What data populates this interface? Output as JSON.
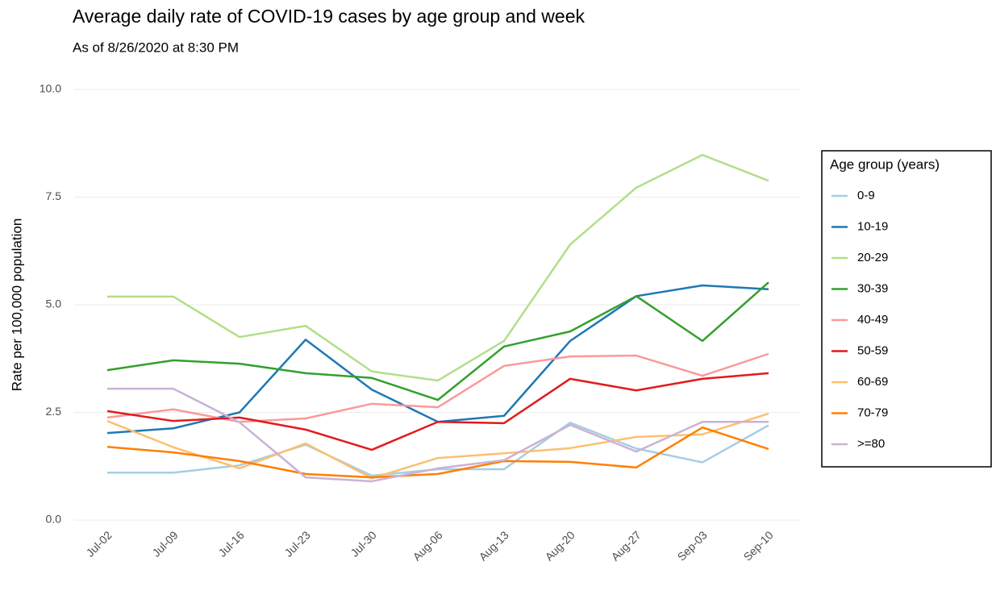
{
  "chart_data": {
    "type": "line",
    "title": "Average daily rate of COVID-19 cases by age group and week",
    "subtitle": "As of 8/26/2020 at 8:30 PM",
    "y_label": "Rate per 100,000 population",
    "legend_title": "Age group (years)",
    "legend": "right",
    "grid": true,
    "categories": [
      "Jul-02",
      "Jul-09",
      "Jul-16",
      "Jul-23",
      "Jul-30",
      "Aug-06",
      "Aug-13",
      "Aug-20",
      "Aug-27",
      "Sep-03",
      "Sep-10"
    ],
    "ylim": [
      0,
      10
    ],
    "yticks": [
      {
        "value": 0,
        "label": "0.0"
      },
      {
        "value": 2.5,
        "label": "2.5"
      },
      {
        "value": 5,
        "label": "5.0"
      },
      {
        "value": 7.5,
        "label": "7.5"
      },
      {
        "value": 10,
        "label": "10.0"
      }
    ],
    "series": [
      {
        "name": "0-9",
        "color": "#a6cee3",
        "values": [
          1.1,
          1.1,
          1.27,
          1.75,
          1.03,
          1.18,
          1.18,
          2.26,
          1.66,
          1.34,
          2.2
        ]
      },
      {
        "name": "10-19",
        "color": "#1f78b4",
        "values": [
          2.02,
          2.13,
          2.5,
          4.19,
          3.03,
          2.28,
          2.42,
          4.16,
          5.2,
          5.45,
          5.36
        ]
      },
      {
        "name": "20-29",
        "color": "#b2df8a",
        "values": [
          5.19,
          5.19,
          4.25,
          4.51,
          3.45,
          3.24,
          4.16,
          6.4,
          7.72,
          8.48,
          7.88
        ]
      },
      {
        "name": "30-39",
        "color": "#33a02c",
        "values": [
          3.48,
          3.71,
          3.63,
          3.41,
          3.3,
          2.79,
          4.03,
          4.38,
          5.2,
          4.16,
          5.52
        ]
      },
      {
        "name": "40-49",
        "color": "#fb9a99",
        "values": [
          2.38,
          2.57,
          2.28,
          2.36,
          2.7,
          2.62,
          3.58,
          3.8,
          3.82,
          3.35,
          3.86
        ]
      },
      {
        "name": "50-59",
        "color": "#e31a1c",
        "values": [
          2.53,
          2.3,
          2.38,
          2.1,
          1.63,
          2.28,
          2.25,
          3.28,
          3.01,
          3.28,
          3.41
        ]
      },
      {
        "name": "60-69",
        "color": "#fdbf6f",
        "values": [
          2.3,
          1.69,
          1.2,
          1.78,
          0.97,
          1.44,
          1.55,
          1.67,
          1.93,
          1.99,
          2.47
        ]
      },
      {
        "name": "70-79",
        "color": "#ff7f00",
        "values": [
          1.7,
          1.57,
          1.37,
          1.07,
          0.99,
          1.07,
          1.37,
          1.35,
          1.22,
          2.15,
          1.65
        ]
      },
      {
        "name": ">=80",
        "color": "#cab2d6",
        "values": [
          3.05,
          3.05,
          2.27,
          0.99,
          0.9,
          1.2,
          1.39,
          2.21,
          1.59,
          2.28,
          2.28
        ]
      }
    ]
  }
}
